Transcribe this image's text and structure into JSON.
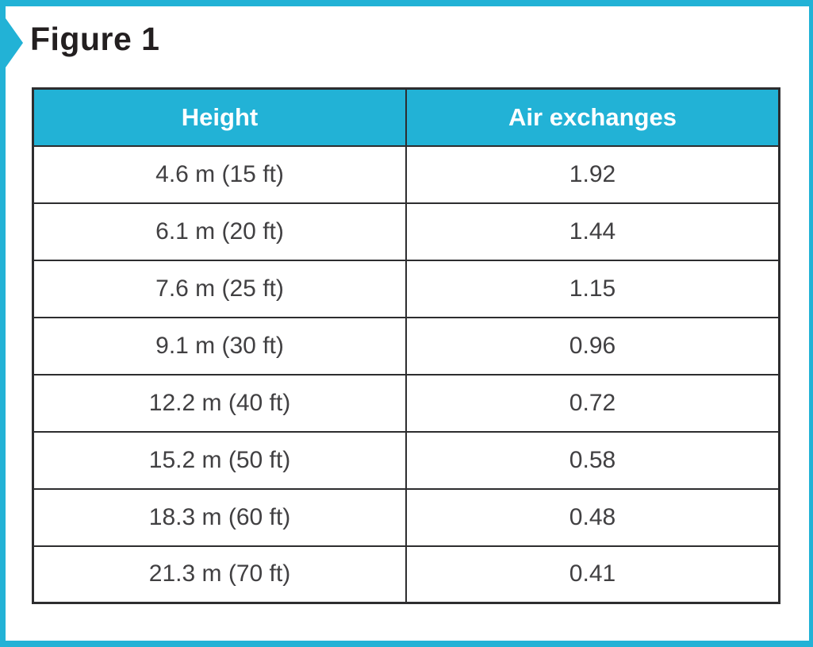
{
  "figure": {
    "title": "Figure 1"
  },
  "table": {
    "columns": [
      {
        "label": "Height"
      },
      {
        "label": "Air exchanges"
      }
    ],
    "rows": [
      {
        "height": "4.6 m (15 ft)",
        "air_exchanges": "1.92"
      },
      {
        "height": "6.1 m (20 ft)",
        "air_exchanges": "1.44"
      },
      {
        "height": "7.6 m (25 ft)",
        "air_exchanges": "1.15"
      },
      {
        "height": "9.1 m (30 ft)",
        "air_exchanges": "0.96"
      },
      {
        "height": "12.2 m (40 ft)",
        "air_exchanges": "0.72"
      },
      {
        "height": "15.2 m (50 ft)",
        "air_exchanges": "0.58"
      },
      {
        "height": "18.3 m (60 ft)",
        "air_exchanges": "0.48"
      },
      {
        "height": "21.3 m (70 ft)",
        "air_exchanges": "0.41"
      }
    ]
  },
  "colors": {
    "accent_cyan": "#22B2D6",
    "border": "#2D2D2F",
    "title_text": "#231F20",
    "body_text": "#414042",
    "header_text": "#FFFFFF",
    "background": "#FFFFFF"
  }
}
